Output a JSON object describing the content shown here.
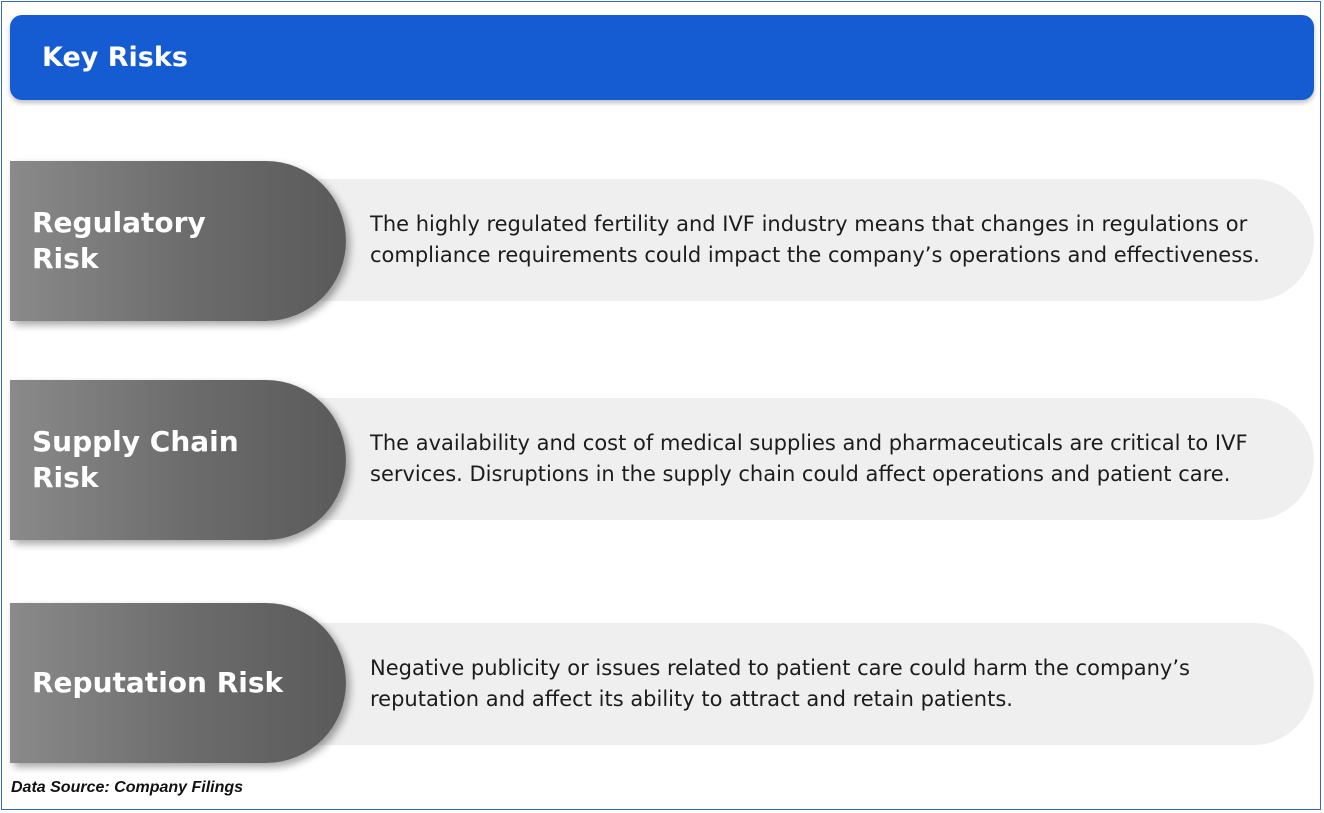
{
  "header": {
    "title": "Key Risks"
  },
  "risks": [
    {
      "label_line1": "Regulatory",
      "label_line2": "Risk",
      "description": "The highly regulated fertility and IVF industry means that changes in regulations or compliance requirements could impact the company’s operations and effectiveness."
    },
    {
      "label_line1": "Supply Chain",
      "label_line2": "Risk",
      "description": "The availability and cost of medical supplies and pharmaceuticals are critical to IVF services. Disruptions in the supply chain could affect operations and patient care."
    },
    {
      "label_line1": "Reputation Risk",
      "label_line2": "",
      "description": "Negative publicity or issues related to patient care could harm the company’s reputation and affect its ability to attract and retain patients."
    }
  ],
  "footer": {
    "source": "Data Source: Company Filings"
  },
  "colors": {
    "header_bg": "#155bd1",
    "label_bg": "#6b6b6b",
    "desc_bg": "#efefef",
    "border": "#3a66c8"
  }
}
